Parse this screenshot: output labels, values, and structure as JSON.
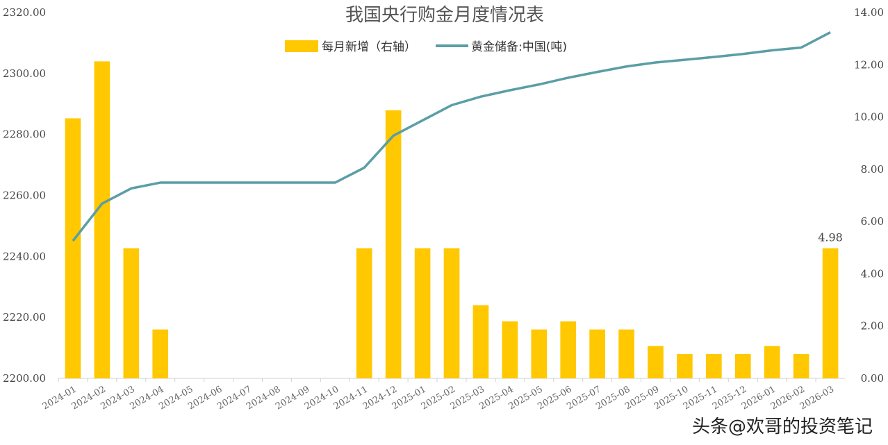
{
  "watermark": "头条@欢哥的投资笔记",
  "chart_data": {
    "type": "bar",
    "title": "我国央行购金月度情况表",
    "categories": [
      "2024-01",
      "2024-02",
      "2024-03",
      "2024-04",
      "2024-05",
      "2024-06",
      "2024-07",
      "2024-08",
      "2024-09",
      "2024-10",
      "2024-11",
      "2024-12",
      "2025-01",
      "2025-02",
      "2025-03",
      "2025-04",
      "2025-05",
      "2025-06",
      "2025-07",
      "2025-08",
      "2025-09",
      "2025-10",
      "2025-11",
      "2025-12",
      "2026-01",
      "2026-02",
      "2026-03"
    ],
    "series": [
      {
        "name": "每月新增（右轴）",
        "type": "bar",
        "axis": "right",
        "color": "#FFC800",
        "values": [
          9.95,
          12.13,
          4.98,
          1.87,
          0,
          0,
          0,
          0,
          0,
          0,
          4.98,
          10.26,
          4.98,
          4.98,
          2.8,
          2.18,
          1.87,
          2.18,
          1.87,
          1.87,
          1.24,
          0.93,
          0.93,
          0.93,
          1.24,
          0.93,
          4.98
        ]
      },
      {
        "name": "黄金储备:中国(吨)",
        "type": "line",
        "axis": "left",
        "color": "#5B9EA6",
        "values": [
          2245.1,
          2257.3,
          2262.3,
          2264.2,
          2264.2,
          2264.2,
          2264.2,
          2264.2,
          2264.2,
          2264.2,
          2269.1,
          2279.6,
          2284.6,
          2289.6,
          2292.4,
          2294.5,
          2296.4,
          2298.6,
          2300.5,
          2302.3,
          2303.6,
          2304.5,
          2305.4,
          2306.4,
          2307.6,
          2308.5,
          2313.5
        ]
      }
    ],
    "data_labels": [
      {
        "index": 26,
        "series": 0,
        "text": "4.98"
      }
    ],
    "y_left": {
      "min": 2200,
      "max": 2320,
      "ticks": [
        "2200.00",
        "2220.00",
        "2240.00",
        "2260.00",
        "2280.00",
        "2300.00",
        "2320.00"
      ]
    },
    "y_right": {
      "min": 0,
      "max": 14,
      "ticks": [
        "0.00",
        "2.00",
        "4.00",
        "6.00",
        "8.00",
        "10.00",
        "12.00",
        "14.00"
      ]
    },
    "legend_position": "top-center",
    "grid": false
  }
}
